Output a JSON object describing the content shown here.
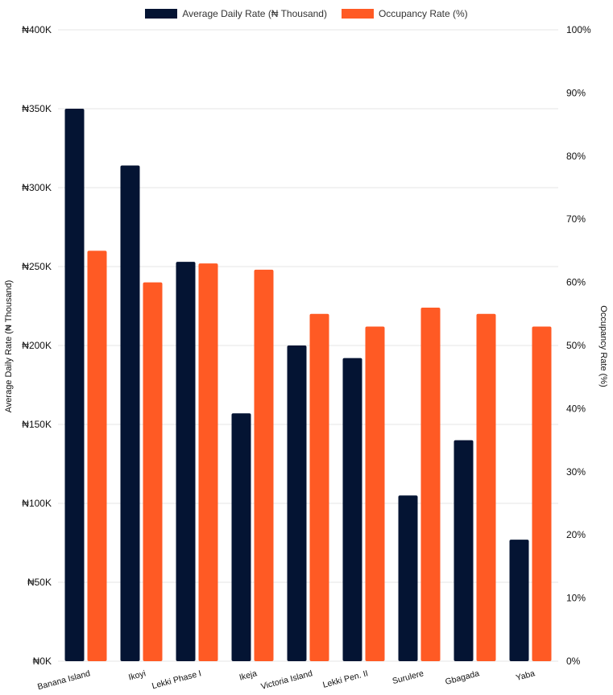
{
  "colors": {
    "adr": "#041433",
    "occupancy": "#FF5A24",
    "grid": "#e6e6e6"
  },
  "legend": {
    "adr_label": "Average Daily Rate (₦ Thousand)",
    "occupancy_label": "Occupancy Rate (%)"
  },
  "chart_data": {
    "type": "bar",
    "categories": [
      "Banana Island",
      "Ikoyi",
      "Lekki Phase I",
      "Ikeja",
      "Victoria Island",
      "Lekki Pen. II",
      "Surulere",
      "Gbagada",
      "Yaba"
    ],
    "series": [
      {
        "name": "Average Daily Rate (₦ Thousand)",
        "axis": "left",
        "values": [
          350,
          314,
          253,
          157,
          200,
          192,
          105,
          140,
          77
        ]
      },
      {
        "name": "Occupancy Rate (%)",
        "axis": "right",
        "values": [
          65,
          60,
          63,
          62,
          55,
          53,
          56,
          55,
          53
        ]
      }
    ],
    "y_left": {
      "label": "Average Daily Rate (₦ Thousand)",
      "range": [
        0,
        400
      ],
      "ticks": [
        "₦0K",
        "₦50K",
        "₦100K",
        "₦150K",
        "₦200K",
        "₦250K",
        "₦300K",
        "₦350K",
        "₦400K"
      ]
    },
    "y_right": {
      "label": "Occupancy Rate (%)",
      "range": [
        0,
        100
      ],
      "ticks": [
        "0%",
        "10%",
        "20%",
        "30%",
        "40%",
        "50%",
        "60%",
        "70%",
        "80%",
        "90%",
        "100%"
      ]
    },
    "grid": true,
    "legend_position": "top"
  }
}
